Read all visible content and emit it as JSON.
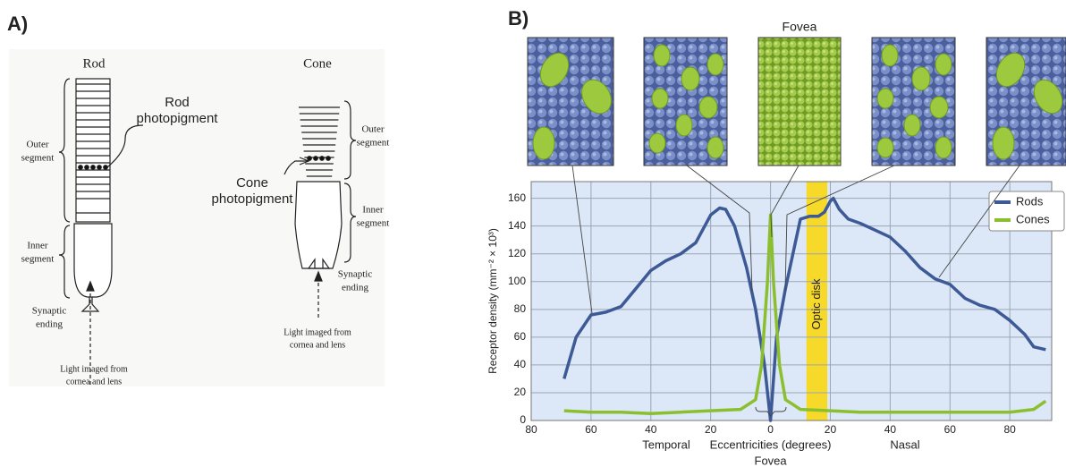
{
  "panel_a": {
    "label": "A)",
    "rod": "Rod",
    "cone": "Cone",
    "rod_photopigment": [
      "Rod",
      "photopigment"
    ],
    "cone_photopigment": [
      "Cone",
      "photopigment"
    ],
    "rod_outer_segment": [
      "Outer",
      "segment"
    ],
    "rod_inner_segment": [
      "Inner",
      "segment"
    ],
    "rod_synaptic_ending": [
      "Synaptic",
      "ending"
    ],
    "rod_light": [
      "Light imaged from",
      "cornea and lens"
    ],
    "cone_outer_segment": [
      "Outer",
      "segment"
    ],
    "cone_inner_segment": [
      "Inner",
      "segment"
    ],
    "cone_synaptic_ending": [
      "Synaptic",
      "ending"
    ],
    "cone_light": [
      "Light imaged from",
      "cornea and lens"
    ]
  },
  "chart_data": {
    "type": "line",
    "panel_label": "B)",
    "top_annotation": "Fovea",
    "bottom_annotation": "Fovea",
    "xlabel": "Eccentricities (degrees)",
    "x_left_label": "Temporal",
    "x_right_label": "Nasal",
    "ylabel": "Receptor density (mm⁻² × 10³)",
    "optic_disk": {
      "label": "Optic disk",
      "range": [
        12,
        19
      ],
      "color": "#f7d92a"
    },
    "series": [
      {
        "name": "Rods",
        "color": "#3d5a96",
        "x": [
          -69,
          -65,
          -60,
          -55,
          -50,
          -45,
          -40,
          -35,
          -30,
          -25,
          -20,
          -17,
          -15,
          -12,
          -8,
          -5,
          -2,
          0,
          2,
          5,
          8,
          10,
          13,
          16,
          18,
          20,
          21,
          23,
          26,
          30,
          35,
          40,
          45,
          50,
          55,
          60,
          65,
          70,
          75,
          80,
          85,
          88,
          92
        ],
        "values": [
          30,
          60,
          76,
          78,
          82,
          95,
          108,
          115,
          120,
          128,
          148,
          153,
          152,
          140,
          110,
          80,
          40,
          0,
          60,
          95,
          125,
          145,
          147,
          147,
          150,
          158,
          160,
          152,
          145,
          142,
          137,
          132,
          122,
          110,
          102,
          98,
          88,
          83,
          80,
          72,
          62,
          53,
          51
        ]
      },
      {
        "name": "Cones",
        "color": "#8cbf2e",
        "x": [
          -69,
          -60,
          -50,
          -40,
          -30,
          -20,
          -10,
          -5,
          -3,
          -1,
          0,
          1,
          3,
          5,
          10,
          20,
          30,
          40,
          50,
          60,
          70,
          80,
          88,
          92
        ],
        "values": [
          7,
          6,
          6,
          5,
          6,
          7,
          8,
          15,
          40,
          100,
          148,
          100,
          40,
          15,
          8,
          7,
          6,
          6,
          6,
          6,
          6,
          6,
          8,
          14
        ]
      }
    ],
    "xlim": [
      -80,
      94
    ],
    "ylim": [
      0,
      172
    ],
    "xticks": [
      {
        "value": -80,
        "label": "80"
      },
      {
        "value": -60,
        "label": "60"
      },
      {
        "value": -40,
        "label": "40"
      },
      {
        "value": -20,
        "label": "20"
      },
      0,
      20,
      40,
      60,
      80
    ],
    "yticks": [
      0,
      20,
      40,
      60,
      80,
      100,
      120,
      140,
      160
    ],
    "grid": true,
    "legend": "upper right"
  }
}
